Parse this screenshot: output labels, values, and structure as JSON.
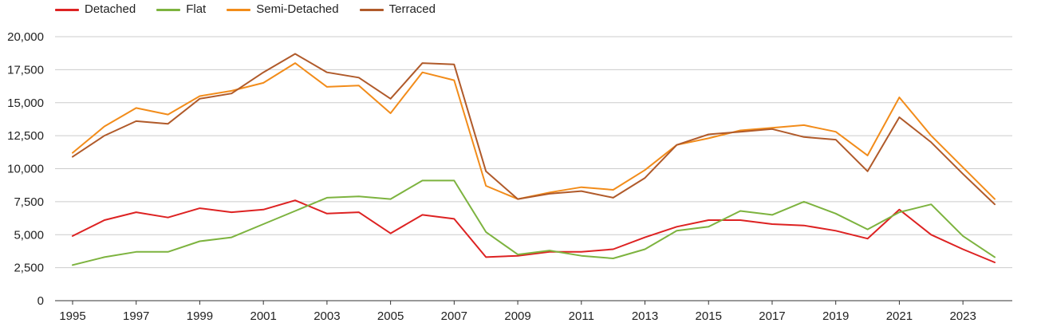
{
  "chart_data": {
    "type": "line",
    "title": "",
    "xlabel": "",
    "ylabel": "",
    "grid": true,
    "legend_position": "top-left",
    "x": [
      1995,
      1996,
      1997,
      1998,
      1999,
      2000,
      2001,
      2002,
      2003,
      2004,
      2005,
      2006,
      2007,
      2008,
      2009,
      2010,
      2011,
      2012,
      2013,
      2014,
      2015,
      2016,
      2017,
      2018,
      2019,
      2020,
      2021,
      2022,
      2023,
      2024
    ],
    "xlim": [
      1995,
      2024
    ],
    "ylim": [
      0,
      20000
    ],
    "x_ticks": [
      "1995",
      "1997",
      "1999",
      "2001",
      "2003",
      "2005",
      "2007",
      "2009",
      "2011",
      "2013",
      "2015",
      "2017",
      "2019",
      "2021",
      "2023"
    ],
    "x_tick_values": [
      1995,
      1997,
      1999,
      2001,
      2003,
      2005,
      2007,
      2009,
      2011,
      2013,
      2015,
      2017,
      2019,
      2021,
      2023
    ],
    "y_ticks": [
      "0",
      "2,500",
      "5,000",
      "7,500",
      "10,000",
      "12,500",
      "15,000",
      "17,500",
      "20,000"
    ],
    "y_tick_values": [
      0,
      2500,
      5000,
      7500,
      10000,
      12500,
      15000,
      17500,
      20000
    ],
    "series": [
      {
        "name": "Detached",
        "color": "#dd2222",
        "values": [
          4900,
          6100,
          6700,
          6300,
          7000,
          6700,
          6900,
          7600,
          6600,
          6700,
          5100,
          6500,
          6200,
          3300,
          3400,
          3700,
          3700,
          3900,
          4800,
          5600,
          6100,
          6100,
          5800,
          5700,
          5300,
          4700,
          6900,
          5000,
          3900,
          2900
        ]
      },
      {
        "name": "Flat",
        "color": "#7db33f",
        "values": [
          2700,
          3300,
          3700,
          3700,
          4500,
          4800,
          5800,
          6800,
          7800,
          7900,
          7700,
          9100,
          9100,
          5200,
          3500,
          3800,
          3400,
          3200,
          3900,
          5300,
          5600,
          6800,
          6500,
          7500,
          6600,
          5400,
          6700,
          7300,
          4900,
          3300
        ]
      },
      {
        "name": "Semi-Detached",
        "color": "#f28c1a",
        "values": [
          11200,
          13200,
          14600,
          14100,
          15500,
          15900,
          16500,
          18000,
          16200,
          16300,
          14200,
          17300,
          16700,
          8700,
          7700,
          8200,
          8600,
          8400,
          9900,
          11800,
          12300,
          12900,
          13100,
          13300,
          12800,
          11000,
          15400,
          12500,
          10100,
          7700
        ]
      },
      {
        "name": "Terraced",
        "color": "#b05a2a",
        "values": [
          10900,
          12500,
          13600,
          13400,
          15300,
          15700,
          17300,
          18700,
          17300,
          16900,
          15300,
          18000,
          17900,
          9800,
          7700,
          8100,
          8300,
          7800,
          9300,
          11800,
          12600,
          12800,
          13000,
          12400,
          12200,
          9800,
          13900,
          12000,
          9600,
          7300
        ]
      }
    ]
  }
}
